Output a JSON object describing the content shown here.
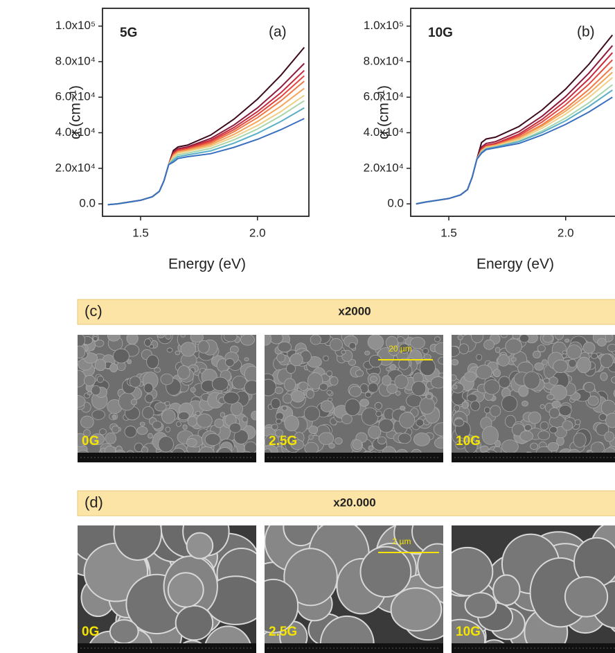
{
  "chart_data": [
    {
      "type": "line",
      "sample_label": "5G",
      "panel_label": "(a)",
      "x_label": "Energy (eV)",
      "y_label": "α (cm⁻¹)",
      "xlim": [
        1.337,
        2.22
      ],
      "xticks": [
        1.5,
        {
          "value": 2,
          "label": "2.0"
        }
      ],
      "ylim": [
        -7000,
        110000
      ],
      "yticks": [
        {
          "value": 0,
          "label": "0.0"
        },
        {
          "value": 20000,
          "label": "2.0x10⁴"
        },
        {
          "value": 40000,
          "label": "4.0x10⁴"
        },
        {
          "value": 60000,
          "label": "6.0x10⁴"
        },
        {
          "value": 80000,
          "label": "8.0x10⁴"
        },
        {
          "value": 100000,
          "label": "1.0x10⁵"
        }
      ],
      "x": [
        1.36,
        1.4,
        1.5,
        1.55,
        1.58,
        1.6,
        1.62,
        1.64,
        1.66,
        1.7,
        1.8,
        1.9,
        2.0,
        2.1,
        2.2
      ],
      "series": [
        {
          "color": "#3d0a1c",
          "values": [
            -500,
            0,
            2000,
            4000,
            7000,
            13000,
            22000,
            30000,
            32000,
            33000,
            38700,
            47700,
            58900,
            72300,
            88000
          ]
        },
        {
          "color": "#8c1c3c",
          "values": [
            -500,
            0,
            2000,
            4000,
            7000,
            13000,
            22000,
            29000,
            31000,
            32000,
            36800,
            44400,
            54000,
            65600,
            79000
          ]
        },
        {
          "color": "#c62a3e",
          "values": [
            -500,
            0,
            2000,
            4000,
            7000,
            13000,
            22000,
            28500,
            30500,
            31500,
            35800,
            43000,
            51900,
            62500,
            75000
          ]
        },
        {
          "color": "#e3483f",
          "values": [
            -500,
            0,
            2000,
            4000,
            7000,
            13000,
            22000,
            28000,
            30000,
            31000,
            35000,
            41800,
            50200,
            60200,
            72000
          ]
        },
        {
          "color": "#f07a45",
          "values": [
            -500,
            0,
            2000,
            4000,
            7000,
            13000,
            22000,
            27500,
            29500,
            30500,
            34200,
            40600,
            48500,
            57900,
            69000
          ]
        },
        {
          "color": "#f5a65a",
          "values": [
            -500,
            0,
            2000,
            4000,
            7000,
            13000,
            22000,
            27000,
            29000,
            30000,
            33300,
            39100,
            46300,
            54900,
            65000
          ]
        },
        {
          "color": "#efcf86",
          "values": [
            -500,
            0,
            2000,
            4000,
            7000,
            13000,
            22000,
            26500,
            28500,
            29500,
            32400,
            37600,
            44100,
            51900,
            61000
          ]
        },
        {
          "color": "#a7d6ad",
          "values": [
            -500,
            0,
            2000,
            4000,
            7000,
            13000,
            22000,
            25500,
            27500,
            28500,
            31200,
            36000,
            42100,
            49500,
            58000
          ]
        },
        {
          "color": "#5aaec6",
          "values": [
            -500,
            0,
            2000,
            4000,
            7000,
            13000,
            22000,
            24500,
            26500,
            27500,
            29800,
            34200,
            39700,
            46300,
            54000
          ]
        },
        {
          "color": "#3a6fc0",
          "values": [
            -500,
            0,
            2000,
            4000,
            7000,
            13000,
            22000,
            23500,
            25500,
            26500,
            28200,
            31800,
            36300,
            41700,
            48000
          ]
        }
      ]
    },
    {
      "type": "line",
      "sample_label": "10G",
      "panel_label": "(b)",
      "x_label": "Energy (eV)",
      "y_label": "α (cm⁻¹)",
      "xlim": [
        1.337,
        2.22
      ],
      "xticks": [
        1.5,
        {
          "value": 2,
          "label": "2.0"
        }
      ],
      "ylim": [
        -7000,
        110000
      ],
      "yticks": [
        {
          "value": 0,
          "label": "0.0"
        },
        {
          "value": 20000,
          "label": "2.0x10⁴"
        },
        {
          "value": 40000,
          "label": "4.0x10⁴"
        },
        {
          "value": 60000,
          "label": "6.0x10⁴"
        },
        {
          "value": 80000,
          "label": "8.0x10⁴"
        },
        {
          "value": 100000,
          "label": "1.0x10⁵"
        }
      ],
      "x": [
        1.36,
        1.4,
        1.5,
        1.55,
        1.58,
        1.6,
        1.62,
        1.64,
        1.66,
        1.7,
        1.8,
        1.9,
        2.0,
        2.1,
        2.2
      ],
      "series": [
        {
          "color": "#3d0a1c",
          "values": [
            0,
            1000,
            3000,
            5000,
            8000,
            15000,
            25000,
            34500,
            36500,
            37500,
            43500,
            52900,
            64600,
            78600,
            95000
          ]
        },
        {
          "color": "#8c1c3c",
          "values": [
            0,
            1000,
            3000,
            5000,
            8000,
            15000,
            25000,
            32000,
            34000,
            35000,
            40600,
            49400,
            60400,
            73600,
            89000
          ]
        },
        {
          "color": "#c62a3e",
          "values": [
            0,
            1000,
            3000,
            5000,
            8000,
            15000,
            25000,
            31000,
            33000,
            34000,
            39200,
            47600,
            58000,
            70400,
            85000
          ]
        },
        {
          "color": "#e3483f",
          "values": [
            0,
            1000,
            3000,
            5000,
            8000,
            15000,
            25000,
            30500,
            32500,
            33500,
            38300,
            46100,
            55800,
            67400,
            81000
          ]
        },
        {
          "color": "#f07a45",
          "values": [
            0,
            1000,
            3000,
            5000,
            8000,
            15000,
            25000,
            30000,
            32000,
            33000,
            37400,
            44600,
            53600,
            64400,
            77000
          ]
        },
        {
          "color": "#f5a65a",
          "values": [
            0,
            1000,
            3000,
            5000,
            8000,
            15000,
            25000,
            30000,
            32000,
            33000,
            37000,
            43800,
            52200,
            62200,
            74000
          ]
        },
        {
          "color": "#efcf86",
          "values": [
            0,
            1000,
            3000,
            5000,
            8000,
            15000,
            25000,
            29500,
            31500,
            32500,
            36200,
            42600,
            50500,
            59900,
            71000
          ]
        },
        {
          "color": "#a7d6ad",
          "values": [
            0,
            1000,
            3000,
            5000,
            8000,
            15000,
            25000,
            29000,
            31000,
            32000,
            35300,
            41100,
            48300,
            56900,
            67000
          ]
        },
        {
          "color": "#5aaec6",
          "values": [
            0,
            1000,
            3000,
            5000,
            8000,
            15000,
            25000,
            29000,
            31000,
            32000,
            35000,
            40200,
            46800,
            54800,
            64000
          ]
        },
        {
          "color": "#3a6fc0",
          "values": [
            0,
            1000,
            3000,
            5000,
            8000,
            15000,
            25000,
            28500,
            30500,
            31500,
            34000,
            38800,
            44700,
            51700,
            60000
          ]
        }
      ]
    }
  ],
  "sem_panels": [
    {
      "label": "(c)",
      "magnification": "x2000",
      "scale_bar": "20 µm",
      "images": [
        "0G",
        "2.5G",
        "10G"
      ]
    },
    {
      "label": "(d)",
      "magnification": "x20.000",
      "scale_bar": "2 µm",
      "images": [
        "0G",
        "2.5G",
        "10G"
      ]
    }
  ]
}
